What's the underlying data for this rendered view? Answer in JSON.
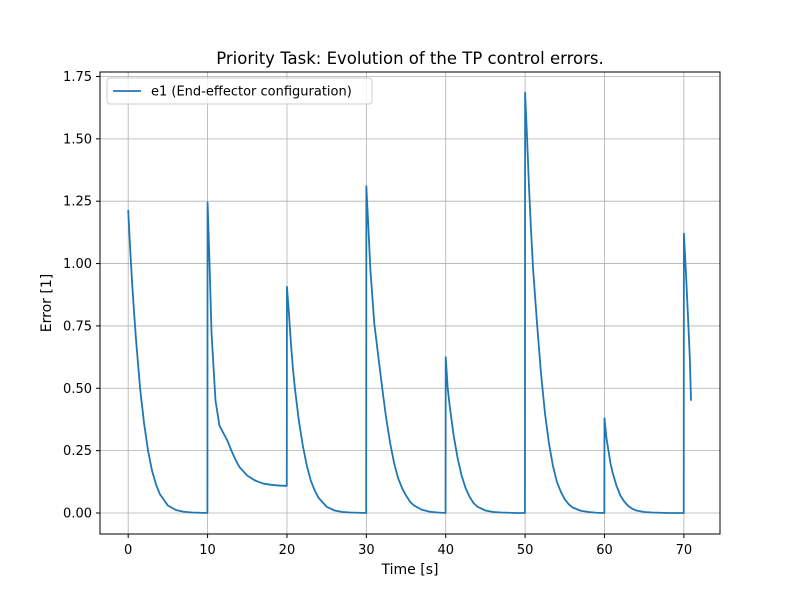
{
  "chart_data": {
    "type": "line",
    "title": "Priority Task: Evolution of the TP control errors.",
    "xlabel": "Time [s]",
    "ylabel": "Error [1]",
    "xlim": [
      -3.55,
      74.55
    ],
    "ylim": [
      -0.0842,
      1.768
    ],
    "xticks": [
      0,
      10,
      20,
      30,
      40,
      50,
      60,
      70
    ],
    "xtick_labels": [
      "0",
      "10",
      "20",
      "30",
      "40",
      "50",
      "60",
      "70"
    ],
    "yticks": [
      0.0,
      0.25,
      0.5,
      0.75,
      1.0,
      1.25,
      1.5,
      1.75
    ],
    "ytick_labels": [
      "0.00",
      "0.25",
      "0.50",
      "0.75",
      "1.00",
      "1.25",
      "1.50",
      "1.75"
    ],
    "grid": true,
    "legend": {
      "position": "upper-left"
    },
    "series": [
      {
        "name": "e1 (End-effector configuration)",
        "color": "#1f77b4",
        "x": [
          0,
          0.25,
          0.5,
          0.75,
          1,
          1.5,
          2,
          2.5,
          3,
          3.5,
          4,
          5,
          6,
          7,
          8,
          9,
          9.98,
          10,
          10.25,
          10.5,
          11,
          11.5,
          12,
          12.5,
          13,
          13.5,
          14,
          15,
          16,
          17,
          18,
          19,
          19.98,
          20,
          20.25,
          20.5,
          20.75,
          21,
          21.5,
          22,
          22.5,
          23,
          23.5,
          24,
          25,
          26,
          27,
          28,
          29,
          29.98,
          30,
          30.25,
          30.5,
          30.75,
          31,
          31.5,
          32,
          32.5,
          33,
          33.5,
          34,
          34.5,
          35,
          35.5,
          36,
          37,
          38,
          39,
          39.98,
          40,
          40.25,
          40.5,
          40.75,
          41,
          41.5,
          42,
          42.5,
          43,
          43.5,
          44,
          45,
          46,
          47,
          48,
          49,
          49.98,
          50,
          50.25,
          50.5,
          50.75,
          51,
          51.5,
          52,
          52.5,
          53,
          53.5,
          54,
          54.5,
          55,
          55.5,
          56,
          57,
          58,
          59,
          59.98,
          60,
          60.25,
          60.5,
          60.75,
          61,
          61.5,
          62,
          62.5,
          63,
          63.5,
          64,
          65,
          66,
          67,
          68,
          69,
          69.98,
          70,
          70.25,
          70.5,
          70.75,
          70.9
        ],
        "y": [
          1.215,
          1.06,
          0.92,
          0.8,
          0.69,
          0.5,
          0.36,
          0.25,
          0.17,
          0.115,
          0.075,
          0.03,
          0.012,
          0.005,
          0.002,
          0.001,
          0.0,
          1.245,
          1.0,
          0.72,
          0.45,
          0.35,
          0.32,
          0.29,
          0.25,
          0.215,
          0.185,
          0.15,
          0.13,
          0.118,
          0.113,
          0.11,
          0.109,
          0.907,
          0.8,
          0.68,
          0.58,
          0.5,
          0.37,
          0.27,
          0.19,
          0.13,
          0.09,
          0.06,
          0.025,
          0.01,
          0.004,
          0.002,
          0.001,
          0.0,
          1.31,
          1.15,
          0.98,
          0.87,
          0.76,
          0.63,
          0.5,
          0.38,
          0.28,
          0.2,
          0.14,
          0.1,
          0.07,
          0.045,
          0.03,
          0.013,
          0.005,
          0.002,
          0.0,
          0.625,
          0.5,
          0.43,
          0.37,
          0.31,
          0.22,
          0.15,
          0.1,
          0.065,
          0.04,
          0.025,
          0.01,
          0.004,
          0.002,
          0.001,
          0.0,
          0.0,
          1.685,
          1.5,
          1.3,
          1.13,
          0.98,
          0.76,
          0.56,
          0.4,
          0.28,
          0.19,
          0.125,
          0.085,
          0.055,
          0.035,
          0.022,
          0.009,
          0.004,
          0.001,
          0.0,
          0.38,
          0.3,
          0.25,
          0.2,
          0.165,
          0.11,
          0.07,
          0.045,
          0.028,
          0.017,
          0.01,
          0.004,
          0.002,
          0.001,
          0.0,
          0.0,
          0.0,
          1.12,
          0.97,
          0.8,
          0.62,
          0.45
        ]
      }
    ]
  }
}
